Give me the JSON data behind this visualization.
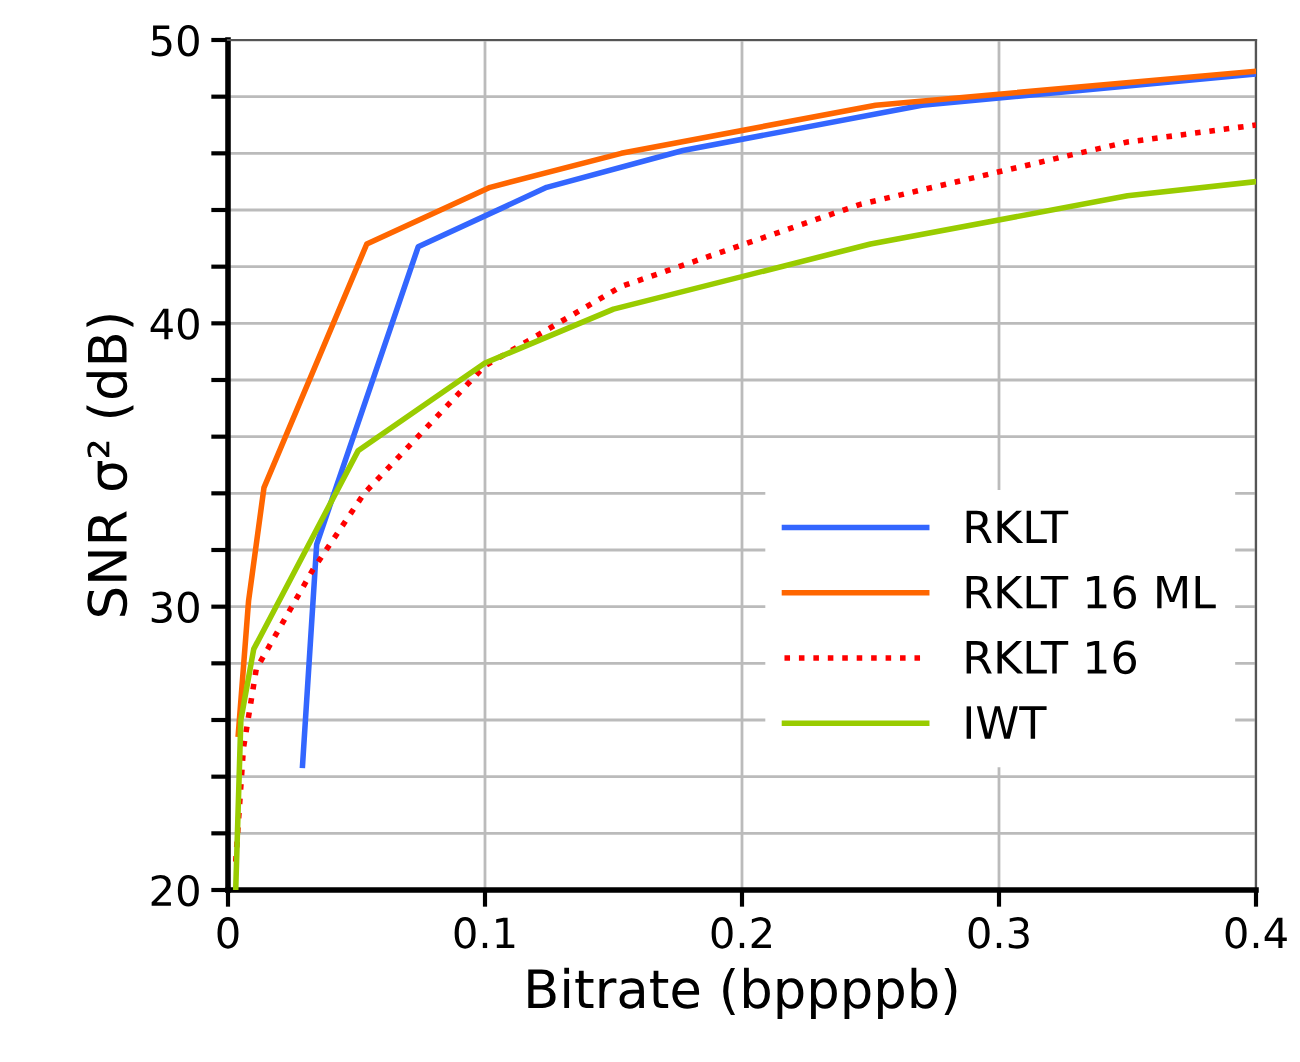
{
  "chart_data": {
    "type": "line",
    "xlabel": "Bitrate (bppppb)",
    "ylabel": "SNR σ² (dB)",
    "xlim": [
      0,
      0.4
    ],
    "xticks": [
      0,
      0.1,
      0.2,
      0.3,
      0.4
    ],
    "ylim": [
      20,
      50
    ],
    "yticks": [
      20,
      {
        "value": 22,
        "label": null
      },
      {
        "value": 24,
        "label": null
      },
      {
        "value": 26,
        "label": null
      },
      {
        "value": 28,
        "label": null
      },
      30,
      {
        "value": 32,
        "label": null
      },
      {
        "value": 34,
        "label": null
      },
      {
        "value": 36,
        "label": null
      },
      {
        "value": 38,
        "label": null
      },
      40,
      {
        "value": 42,
        "label": null
      },
      {
        "value": 44,
        "label": null
      },
      {
        "value": 46,
        "label": null
      },
      {
        "value": 48,
        "label": null
      },
      50
    ],
    "grid": true,
    "legend": "bottom right",
    "series": [
      {
        "name": "RKLT",
        "color": "#3366ff",
        "line_style": "solid",
        "x": [
          0.029,
          0.0345,
          0.074,
          0.124,
          0.177,
          0.27,
          0.4
        ],
        "values": [
          24.4,
          32.2,
          42.7,
          44.8,
          46.1,
          47.7,
          48.8
        ]
      },
      {
        "name": "RKLT 16 ML",
        "color": "#ff6600",
        "line_style": "solid",
        "x": [
          0.004,
          0.008,
          0.014,
          0.054,
          0.102,
          0.153,
          0.252,
          0.4
        ],
        "values": [
          25.5,
          30.2,
          34.2,
          42.8,
          44.8,
          46.0,
          47.7,
          48.9
        ]
      },
      {
        "name": "RKLT 16",
        "color": "#ff0000",
        "line_style": "dotted",
        "x": [
          0.003,
          0.006,
          0.011,
          0.033,
          0.053,
          0.1,
          0.153,
          0.246,
          0.326,
          0.35,
          0.4
        ],
        "values": [
          21.0,
          25.0,
          27.8,
          31.3,
          34.0,
          38.5,
          41.3,
          44.2,
          45.9,
          46.4,
          47.0
        ]
      },
      {
        "name": "IWT",
        "color": "#99cc00",
        "line_style": "solid",
        "x": [
          0.003,
          0.005,
          0.01,
          0.0506,
          0.1,
          0.15,
          0.25,
          0.35,
          0.4
        ],
        "values": [
          20.0,
          26.0,
          28.5,
          35.5,
          38.6,
          40.5,
          42.8,
          44.5,
          45.0
        ]
      }
    ]
  }
}
